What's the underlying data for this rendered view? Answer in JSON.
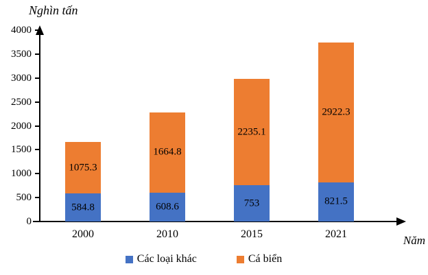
{
  "chart_data": {
    "type": "bar",
    "stacked": true,
    "title": "",
    "ylabel": "Nghìn tấn",
    "xlabel": "Năm",
    "categories": [
      "2000",
      "2010",
      "2015",
      "2021"
    ],
    "series": [
      {
        "name": "Các loại khác",
        "color": "#4472C4",
        "values": [
          584.8,
          608.6,
          753,
          821.5
        ],
        "value_labels": [
          "584.8",
          "608.6",
          "753",
          "821.5"
        ]
      },
      {
        "name": "Cá biển",
        "color": "#ED7D31",
        "values": [
          1075.3,
          1664.8,
          2235.1,
          2922.3
        ],
        "value_labels": [
          "1075.3",
          "1664.8",
          "2235.1",
          "2922.3"
        ]
      }
    ],
    "ylim": [
      0,
      4000
    ],
    "ytick_step": 500,
    "yticks": [
      "0",
      "500",
      "1000",
      "1500",
      "2000",
      "2500",
      "3000",
      "3500",
      "4000"
    ],
    "grid": false,
    "legend_position": "bottom",
    "axis_color": "#000000",
    "label_color": "#000000"
  }
}
